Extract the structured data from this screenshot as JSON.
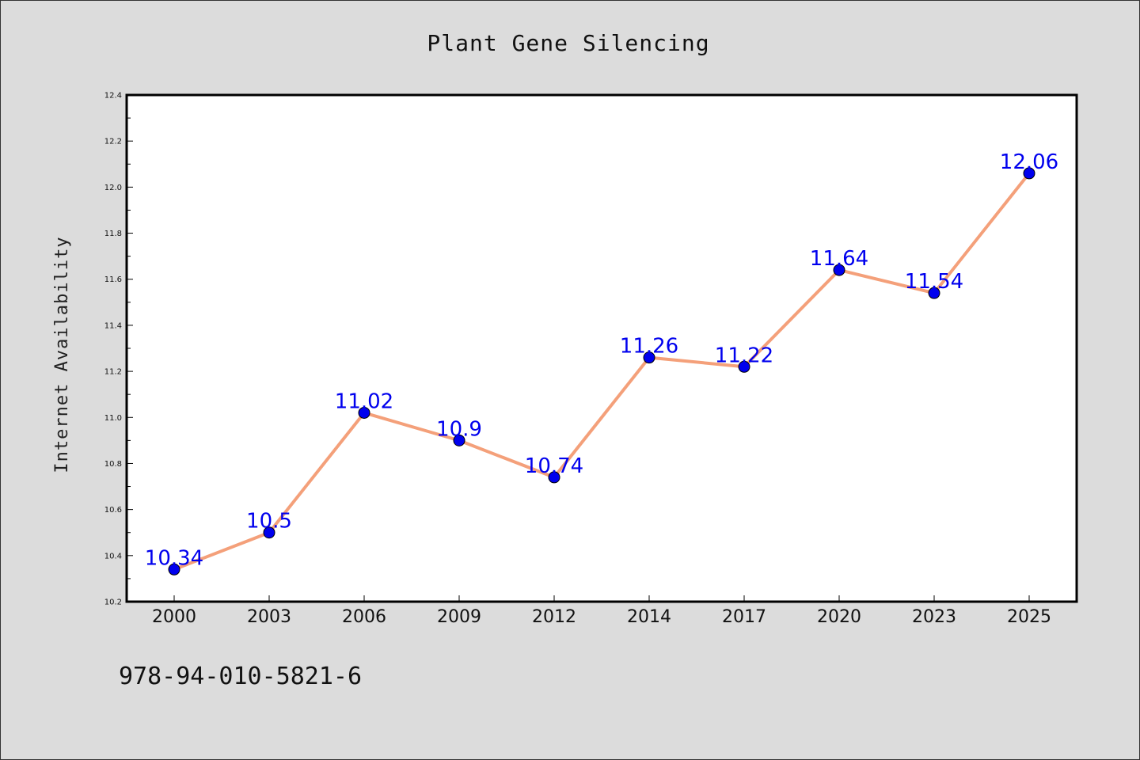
{
  "chart_data": {
    "type": "line",
    "title": "Plant Gene Silencing",
    "xlabel": "",
    "ylabel": "Internet Availability",
    "categories": [
      "2000",
      "2003",
      "2006",
      "2009",
      "2012",
      "2014",
      "2017",
      "2020",
      "2023",
      "2025"
    ],
    "series": [
      {
        "values": [
          10.34,
          10.5,
          11.02,
          10.9,
          10.74,
          11.26,
          11.22,
          11.64,
          11.54,
          12.06
        ],
        "data_labels": [
          "10.34",
          "10.5",
          "11.02",
          "10.9",
          "10.74",
          "11.26",
          "11.22",
          "11.64",
          "11.54",
          "12.06"
        ],
        "line_color": "#f4a07a",
        "marker_color": "#0000ee"
      }
    ],
    "ylim": [
      10.2,
      12.4
    ],
    "yticks": [
      "10.2",
      "10.4",
      "10.6",
      "10.8",
      "11.0",
      "11.2",
      "11.4",
      "11.6",
      "11.8",
      "12.0",
      "12.2",
      "12.4"
    ],
    "grid": false,
    "legend": "none",
    "colors": {
      "background": "#dcdcdc",
      "plot_area": "#ffffff",
      "data_label": "#0000ee"
    }
  },
  "footnote": "978-94-010-5821-6"
}
